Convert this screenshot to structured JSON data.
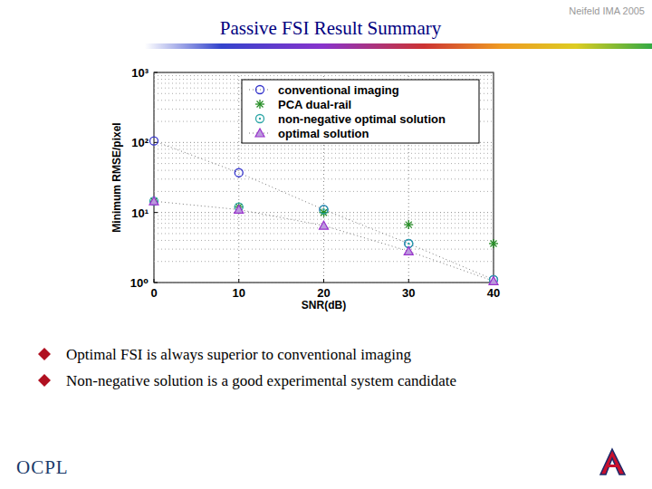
{
  "slide": {
    "title": "Passive FSI Result Summary",
    "corner": "Neifeld IMA 2005",
    "bullets": [
      "Optimal FSI is always superior to conventional imaging",
      "Non-negative solution is a good experimental system candidate"
    ],
    "logo": "OCPL"
  },
  "chart_data": {
    "type": "line",
    "x_label": "SNR(dB)",
    "y_label": "Minimum RMSE/pixel",
    "x": [
      0,
      10,
      20,
      30,
      40
    ],
    "xlim": [
      0,
      40
    ],
    "xticks": [
      0,
      10,
      20,
      30,
      40
    ],
    "ylim": [
      1,
      1000
    ],
    "yticks": [
      {
        "value": 1,
        "label": "10⁰"
      },
      {
        "value": 10,
        "label": "10¹"
      },
      {
        "value": 100,
        "label": "10²"
      },
      {
        "value": 1000,
        "label": "10³"
      }
    ],
    "log": "y",
    "grid": true,
    "legend": "top-right",
    "series": [
      {
        "name": "conventional imaging",
        "color": "#3333cc",
        "marker": "circle",
        "line_style": "dotted",
        "values": [
          105,
          37,
          11,
          3.6,
          1.1
        ]
      },
      {
        "name": "PCA dual-rail",
        "color": "#228b22",
        "marker": "asterisk",
        "line_style": "none",
        "values": [
          14.5,
          12,
          10,
          6.7,
          3.6
        ]
      },
      {
        "name": "non-negative optimal solution",
        "color": "#2aa5a5",
        "marker": "circle-dot",
        "line_style": "none",
        "values": [
          14.5,
          12,
          11,
          3.6,
          1.1
        ]
      },
      {
        "name": "optimal solution",
        "color": "#9933cc",
        "marker": "triangle",
        "line_style": "dotted",
        "values": [
          14.5,
          11,
          6.5,
          2.8,
          1.05
        ]
      }
    ]
  }
}
